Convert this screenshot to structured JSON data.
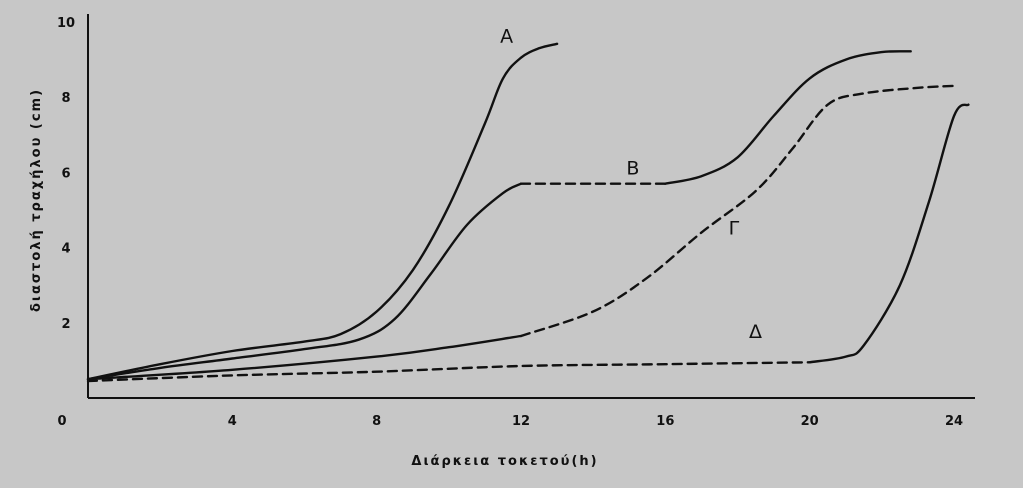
{
  "chart_data": {
    "type": "line",
    "title": "",
    "xlabel": "Διάρκεια τοκετού(h)",
    "ylabel": "διαστολή τραχήλου (cm)",
    "xlim": [
      0,
      24
    ],
    "ylim": [
      0,
      10
    ],
    "xticks": [
      "0",
      "4",
      "8",
      "12",
      "16",
      "20",
      "24"
    ],
    "yticks": [
      "0",
      "2",
      "4",
      "6",
      "8",
      "10"
    ],
    "grid": false,
    "legend": "none",
    "colors": {
      "background": "#c7c7c7",
      "line": "#111111"
    },
    "series": [
      {
        "name": "Α",
        "segments": [
          {
            "style": "solid",
            "points": [
              [
                0,
                0.5
              ],
              [
                2,
                0.9
              ],
              [
                4,
                1.25
              ],
              [
                6,
                1.5
              ],
              [
                7,
                1.7
              ],
              [
                8,
                2.3
              ],
              [
                9,
                3.4
              ],
              [
                10,
                5.1
              ],
              [
                11,
                7.3
              ],
              [
                11.5,
                8.5
              ],
              [
                12,
                9.05
              ],
              [
                12.5,
                9.3
              ],
              [
                13,
                9.42
              ]
            ]
          }
        ]
      },
      {
        "name": "Β",
        "segments": [
          {
            "style": "solid",
            "points": [
              [
                0,
                0.5
              ],
              [
                2,
                0.8
              ],
              [
                4,
                1.05
              ],
              [
                6,
                1.3
              ],
              [
                7.5,
                1.55
              ],
              [
                8.5,
                2.1
              ],
              [
                9.5,
                3.3
              ],
              [
                10.5,
                4.6
              ],
              [
                11.5,
                5.45
              ],
              [
                12,
                5.7
              ]
            ]
          },
          {
            "style": "dashed",
            "points": [
              [
                12,
                5.7
              ],
              [
                14,
                5.7
              ],
              [
                16,
                5.7
              ]
            ]
          },
          {
            "style": "solid",
            "points": [
              [
                16,
                5.7
              ],
              [
                17,
                5.9
              ],
              [
                18,
                6.4
              ],
              [
                19,
                7.5
              ],
              [
                20,
                8.5
              ],
              [
                21,
                9.0
              ],
              [
                22,
                9.2
              ],
              [
                22.8,
                9.22
              ]
            ]
          }
        ]
      },
      {
        "name": "Γ",
        "segments": [
          {
            "style": "solid",
            "points": [
              [
                0,
                0.5
              ],
              [
                4,
                0.75
              ],
              [
                8,
                1.1
              ],
              [
                10,
                1.35
              ],
              [
                12,
                1.65
              ]
            ]
          },
          {
            "style": "dashed",
            "points": [
              [
                12,
                1.65
              ],
              [
                14,
                2.3
              ],
              [
                15.5,
                3.2
              ],
              [
                17,
                4.4
              ],
              [
                18.5,
                5.5
              ],
              [
                19.5,
                6.6
              ],
              [
                20.5,
                7.8
              ],
              [
                21.5,
                8.1
              ],
              [
                23,
                8.25
              ],
              [
                24,
                8.3
              ]
            ]
          }
        ]
      },
      {
        "name": "Δ",
        "segments": [
          {
            "style": "dashed",
            "points": [
              [
                0,
                0.45
              ],
              [
                4,
                0.6
              ],
              [
                8,
                0.7
              ],
              [
                12,
                0.85
              ],
              [
                16,
                0.9
              ],
              [
                20,
                0.95
              ]
            ]
          },
          {
            "style": "solid",
            "points": [
              [
                20,
                0.95
              ],
              [
                21,
                1.1
              ],
              [
                21.5,
                1.4
              ],
              [
                22.5,
                3.0
              ],
              [
                23.3,
                5.2
              ],
              [
                24,
                7.5
              ],
              [
                24.4,
                7.8
              ]
            ]
          }
        ]
      }
    ],
    "label_positions": [
      {
        "name": "Α",
        "x": 11.6,
        "y": 9.45
      },
      {
        "name": "Β",
        "x": 15.1,
        "y": 5.95
      },
      {
        "name": "Γ",
        "x": 17.9,
        "y": 4.35
      },
      {
        "name": "Δ",
        "x": 18.5,
        "y": 1.6
      }
    ]
  }
}
